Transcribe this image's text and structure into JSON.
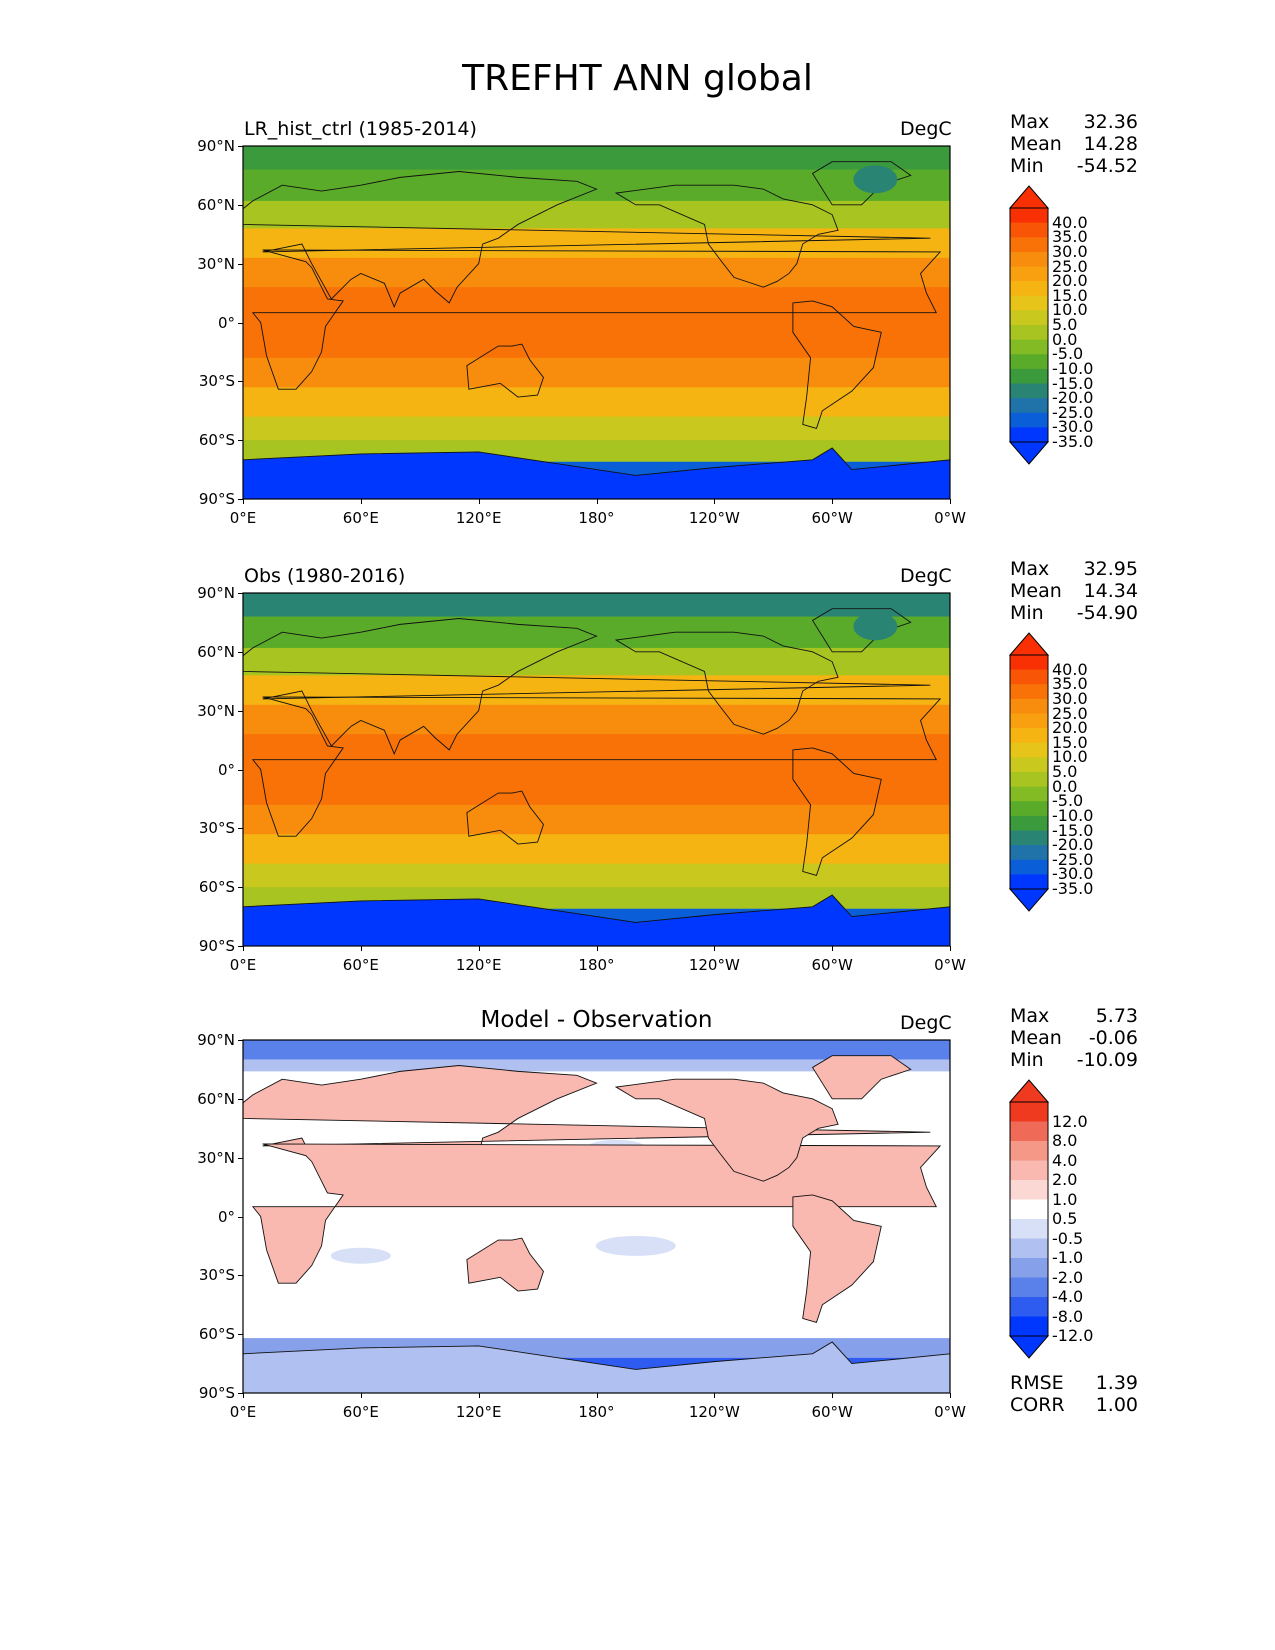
{
  "figure_title": "TREFHT ANN global",
  "lat_ticks": [
    "90°N",
    "60°N",
    "30°N",
    "0°",
    "30°S",
    "60°S",
    "90°S"
  ],
  "lon_ticks": [
    "0°E",
    "60°E",
    "120°E",
    "180°",
    "120°W",
    "60°W",
    "0°W"
  ],
  "panels": [
    {
      "title": "LR_hist_ctrl (1985-2014)",
      "units": "DegC",
      "stats": {
        "max_label": "Max",
        "max": "32.36",
        "mean_label": "Mean",
        "mean": "14.28",
        "min_label": "Min",
        "min": "-54.52"
      },
      "colorbar_levels": [
        "40.0",
        "35.0",
        "30.0",
        "25.0",
        "20.0",
        "15.0",
        "10.0",
        "5.0",
        "0.0",
        "-5.0",
        "-10.0",
        "-15.0",
        "-20.0",
        "-25.0",
        "-30.0",
        "-35.0"
      ]
    },
    {
      "title": "Obs (1980-2016)",
      "units": "DegC",
      "stats": {
        "max_label": "Max",
        "max": "32.95",
        "mean_label": "Mean",
        "mean": "14.34",
        "min_label": "Min",
        "min": "-54.90"
      },
      "colorbar_levels": [
        "40.0",
        "35.0",
        "30.0",
        "25.0",
        "20.0",
        "15.0",
        "10.0",
        "5.0",
        "0.0",
        "-5.0",
        "-10.0",
        "-15.0",
        "-20.0",
        "-25.0",
        "-30.0",
        "-35.0"
      ]
    },
    {
      "title": "Model - Observation",
      "units": "DegC",
      "stats": {
        "max_label": "Max",
        "max": "5.73",
        "mean_label": "Mean",
        "mean": "-0.06",
        "min_label": "Min",
        "min": "-10.09"
      },
      "colorbar_levels": [
        "12.0",
        "8.0",
        "4.0",
        "2.0",
        "1.0",
        "0.5",
        "-0.5",
        "-1.0",
        "-2.0",
        "-4.0",
        "-8.0",
        "-12.0"
      ],
      "extra": {
        "rmse_label": "RMSE",
        "rmse": "1.39",
        "corr_label": "CORR",
        "corr": "1.00"
      }
    }
  ],
  "chart_data": [
    {
      "type": "heatmap",
      "title": "LR_hist_ctrl (1985-2014)",
      "xlabel": "",
      "ylabel": "",
      "xlim": [
        0,
        360
      ],
      "ylim": [
        -90,
        90
      ],
      "zonal_mean_degC": {
        "lat": [
          85,
          70,
          55,
          40,
          25,
          10,
          0,
          -10,
          -25,
          -40,
          -55,
          -65,
          -80
        ],
        "value": [
          -20,
          -12,
          -2,
          12,
          22,
          26,
          27,
          25,
          21,
          12,
          3,
          -3,
          -35
        ]
      },
      "units": "DegC",
      "stats": {
        "max": 32.36,
        "mean": 14.28,
        "min": -54.52
      }
    },
    {
      "type": "heatmap",
      "title": "Obs (1980-2016)",
      "xlabel": "",
      "ylabel": "",
      "xlim": [
        0,
        360
      ],
      "ylim": [
        -90,
        90
      ],
      "zonal_mean_degC": {
        "lat": [
          85,
          70,
          55,
          40,
          25,
          10,
          0,
          -10,
          -25,
          -40,
          -55,
          -65,
          -80
        ],
        "value": [
          -21,
          -13,
          -3,
          12,
          22,
          26,
          27,
          25,
          21,
          12,
          3,
          -3,
          -35
        ]
      },
      "units": "DegC",
      "stats": {
        "max": 32.95,
        "mean": 14.34,
        "min": -54.9
      }
    },
    {
      "type": "heatmap",
      "title": "Model - Observation",
      "xlabel": "",
      "ylabel": "",
      "xlim": [
        0,
        360
      ],
      "ylim": [
        -90,
        90
      ],
      "units": "DegC",
      "stats": {
        "max": 5.73,
        "mean": -0.06,
        "min": -10.09,
        "rmse": 1.39,
        "corr": 1.0
      }
    }
  ],
  "colors": {
    "temp_scale": [
      "#0037ff",
      "#0a5fd8",
      "#1f73a8",
      "#2a8474",
      "#3a9a3c",
      "#5aab2a",
      "#82bb24",
      "#a8c420",
      "#c8c81e",
      "#e6c41a",
      "#f6b412",
      "#f8a010",
      "#f88c0c",
      "#f87208",
      "#f85606",
      "#f83004"
    ],
    "diff_scale": [
      "#0037ff",
      "#2e5cf0",
      "#5a80ea",
      "#86a0ea",
      "#b0c0f0",
      "#d8e0f8",
      "#ffffff",
      "#fcd8d4",
      "#f9b8b0",
      "#f59888",
      "#f06a58",
      "#f03a20"
    ]
  }
}
